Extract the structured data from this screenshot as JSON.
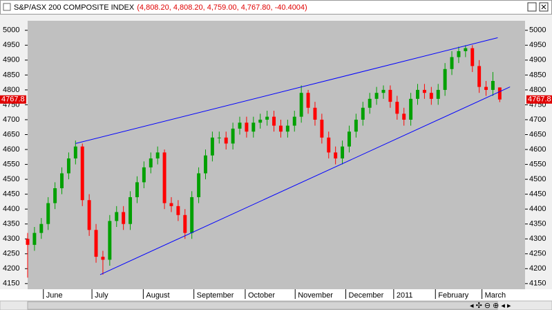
{
  "chart_data": {
    "type": "candlestick",
    "title": "S&P/ASX 200 COMPOSITE INDEX",
    "subtitle": "(4,808.20, 4,808.20, 4,759.00, 4,767.80, -40.4004)",
    "last_price_label": "4767.8",
    "up_color": "#00a000",
    "down_color": "#ff0000",
    "background": "#c0c0c0",
    "open": [
      4300,
      4280,
      4320,
      4350,
      4420,
      4470,
      4520,
      4570,
      4610,
      4430,
      4330,
      4240,
      4230,
      4360,
      4390,
      4350,
      4440,
      4490,
      4540,
      4570,
      4590,
      4420,
      4410,
      4380,
      4320,
      4440,
      4520,
      4580,
      4640,
      4640,
      4620,
      4670,
      4690,
      4660,
      4690,
      4700,
      4710,
      4680,
      4660,
      4680,
      4710,
      4790,
      4740,
      4700,
      4640,
      4590,
      4570,
      4610,
      4660,
      4700,
      4740,
      4770,
      4790,
      4800,
      4760,
      4720,
      4700,
      4770,
      4800,
      4790,
      4770,
      4800,
      4870,
      4910,
      4930,
      4940,
      4880,
      4810,
      4800,
      4808.2
    ],
    "high": [
      4320,
      4340,
      4370,
      4440,
      4490,
      4540,
      4590,
      4630,
      4620,
      4450,
      4350,
      4260,
      4380,
      4410,
      4410,
      4460,
      4510,
      4560,
      4590,
      4610,
      4600,
      4440,
      4430,
      4400,
      4460,
      4540,
      4600,
      4660,
      4660,
      4660,
      4690,
      4710,
      4710,
      4710,
      4720,
      4730,
      4730,
      4700,
      4700,
      4730,
      4815,
      4800,
      4760,
      4720,
      4660,
      4610,
      4630,
      4680,
      4720,
      4760,
      4790,
      4810,
      4815,
      4815,
      4780,
      4740,
      4790,
      4820,
      4820,
      4810,
      4820,
      4890,
      4930,
      4945,
      4950,
      4950,
      4900,
      4830,
      4860,
      4808.2
    ],
    "low": [
      4170,
      4260,
      4300,
      4330,
      4400,
      4450,
      4500,
      4550,
      4410,
      4310,
      4220,
      4180,
      4210,
      4340,
      4330,
      4330,
      4420,
      4470,
      4520,
      4550,
      4400,
      4390,
      4360,
      4300,
      4300,
      4420,
      4500,
      4560,
      4620,
      4600,
      4600,
      4650,
      4640,
      4640,
      4670,
      4680,
      4660,
      4640,
      4640,
      4660,
      4690,
      4720,
      4680,
      4620,
      4570,
      4550,
      4550,
      4590,
      4640,
      4680,
      4720,
      4750,
      4770,
      4740,
      4700,
      4680,
      4680,
      4750,
      4770,
      4750,
      4750,
      4780,
      4850,
      4890,
      4910,
      4860,
      4790,
      4780,
      4780,
      4759
    ],
    "close": [
      4280,
      4320,
      4350,
      4420,
      4470,
      4520,
      4570,
      4610,
      4430,
      4330,
      4240,
      4230,
      4360,
      4390,
      4350,
      4440,
      4490,
      4540,
      4570,
      4590,
      4420,
      4410,
      4380,
      4320,
      4440,
      4520,
      4580,
      4640,
      4640,
      4620,
      4670,
      4690,
      4660,
      4690,
      4700,
      4710,
      4680,
      4660,
      4680,
      4710,
      4790,
      4740,
      4700,
      4640,
      4590,
      4570,
      4610,
      4660,
      4700,
      4740,
      4770,
      4790,
      4800,
      4760,
      4720,
      4700,
      4770,
      4800,
      4790,
      4770,
      4800,
      4870,
      4910,
      4930,
      4940,
      4880,
      4810,
      4800,
      4830,
      4767.8
    ],
    "xlim": [
      0,
      72.7
    ],
    "ylim": [
      4131,
      5032
    ],
    "xticks": [
      {
        "value": 2.3,
        "label": "June"
      },
      {
        "value": 9.4,
        "label": "July"
      },
      {
        "value": 16.9,
        "label": "August"
      },
      {
        "value": 24.3,
        "label": "September"
      },
      {
        "value": 31.8,
        "label": "October"
      },
      {
        "value": 39.1,
        "label": "November"
      },
      {
        "value": 46.5,
        "label": "December"
      },
      {
        "value": 53.5,
        "label": "2011"
      },
      {
        "value": 59.6,
        "label": "February"
      },
      {
        "value": 66.4,
        "label": "March"
      }
    ],
    "yticks": [
      4150,
      4200,
      4250,
      4300,
      4350,
      4400,
      4450,
      4500,
      4550,
      4600,
      4650,
      4700,
      4750,
      4800,
      4850,
      4900,
      4950,
      5000
    ],
    "trendlines": [
      {
        "x": [
          7,
          68.7
        ],
        "y": [
          4620,
          4975
        ],
        "color": "#0000ff"
      },
      {
        "x": [
          10.6,
          70.5
        ],
        "y": [
          4180,
          4810
        ],
        "color": "#0000ff"
      }
    ]
  }
}
